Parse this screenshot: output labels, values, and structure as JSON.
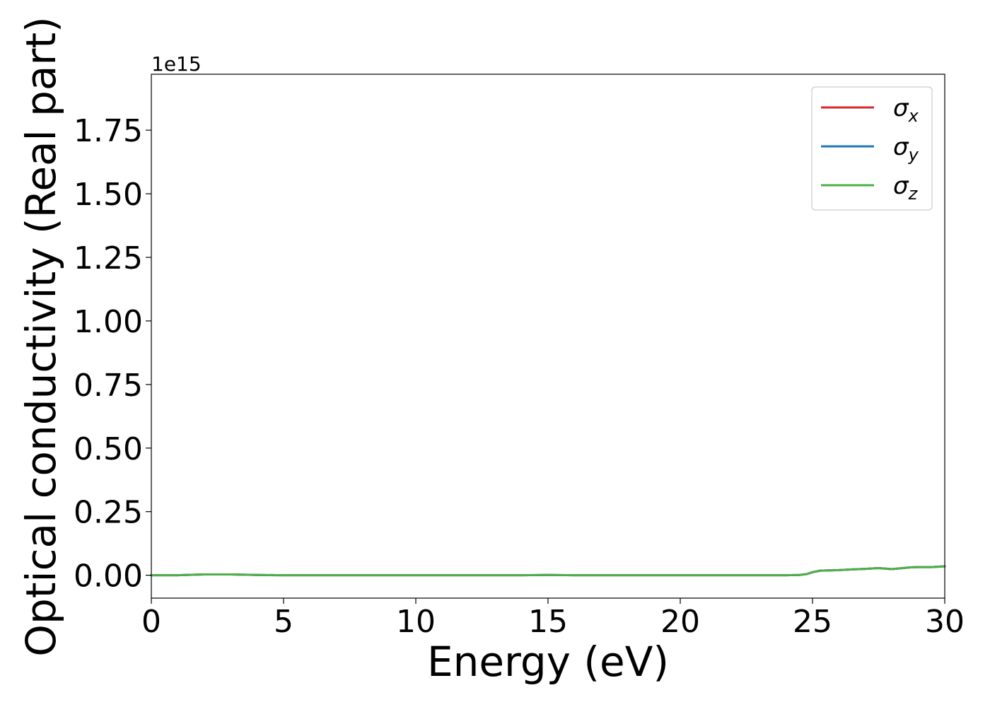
{
  "chart_data": {
    "type": "line",
    "xlabel": "Energy (eV)",
    "ylabel": "Optical conductivity (Real part)",
    "y_offset_label": "1e15",
    "xlim": [
      0,
      30
    ],
    "ylim": [
      -0.09,
      1.97
    ],
    "y_scale_factor": 1000000000000000.0,
    "x_ticks": [
      0,
      5,
      10,
      15,
      20,
      25,
      30
    ],
    "x_tick_labels": [
      "0",
      "5",
      "10",
      "15",
      "20",
      "25",
      "30"
    ],
    "y_ticks": [
      0.0,
      0.25,
      0.5,
      0.75,
      1.0,
      1.25,
      1.5,
      1.75
    ],
    "y_tick_labels": [
      "0.00",
      "0.25",
      "0.50",
      "0.75",
      "1.00",
      "1.25",
      "1.50",
      "1.75"
    ],
    "grid": false,
    "legend_position": "top-right",
    "x": [
      0,
      1,
      2,
      3,
      4,
      5,
      6,
      8,
      10,
      12,
      14,
      15,
      16,
      18,
      20,
      22,
      24,
      24.5,
      24.8,
      25,
      25.3,
      26,
      26.5,
      27,
      27.5,
      28,
      28.3,
      28.7,
      29,
      29.5,
      30
    ],
    "series": [
      {
        "name": "σx",
        "base": "σ",
        "sub": "x",
        "color": "#d62728",
        "values": [
          0.0,
          0.0,
          0.003,
          0.003,
          0.001,
          0.0,
          0.0,
          0.0,
          0.0,
          0.0,
          0.0,
          0.001,
          0.0,
          0.0,
          0.0,
          0.0,
          0.0,
          0.001,
          0.005,
          0.012,
          0.018,
          0.02,
          0.023,
          0.025,
          0.028,
          0.024,
          0.027,
          0.031,
          0.032,
          0.032,
          0.035
        ]
      },
      {
        "name": "σy",
        "base": "σ",
        "sub": "y",
        "color": "#1f77b4",
        "values": [
          0.0,
          0.0,
          0.003,
          0.003,
          0.001,
          0.0,
          0.0,
          0.0,
          0.0,
          0.0,
          0.0,
          0.001,
          0.0,
          0.0,
          0.0,
          0.0,
          0.0,
          0.001,
          0.005,
          0.012,
          0.018,
          0.02,
          0.023,
          0.025,
          0.028,
          0.024,
          0.027,
          0.031,
          0.032,
          0.032,
          0.035
        ]
      },
      {
        "name": "σz",
        "base": "σ",
        "sub": "z",
        "color": "#4daf4a",
        "values": [
          0.0,
          0.0,
          0.003,
          0.003,
          0.001,
          0.0,
          0.0,
          0.0,
          0.0,
          0.0,
          0.0,
          0.001,
          0.0,
          0.0,
          0.0,
          0.0,
          0.0,
          0.001,
          0.005,
          0.012,
          0.018,
          0.02,
          0.023,
          0.025,
          0.028,
          0.024,
          0.027,
          0.031,
          0.032,
          0.032,
          0.035
        ]
      }
    ]
  }
}
